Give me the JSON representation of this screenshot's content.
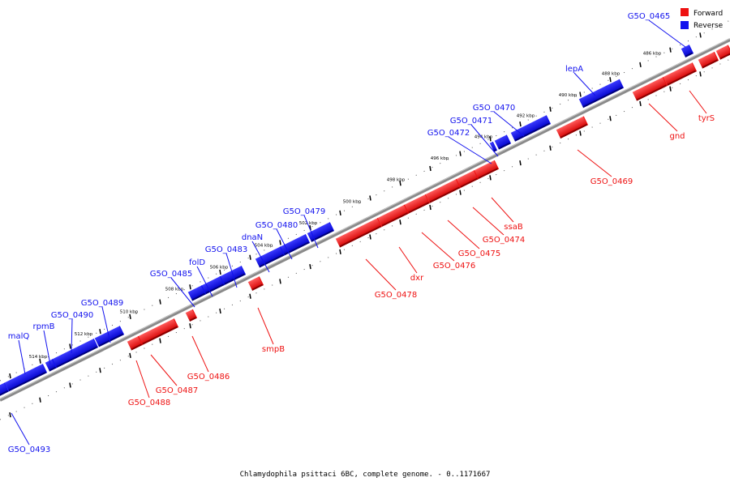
{
  "colors": {
    "forward": "#ee1111",
    "reverse": "#1111ee"
  },
  "legend": [
    {
      "label": "Forward",
      "color": "#ee1111"
    },
    {
      "label": "Reverse",
      "color": "#1111ee"
    }
  ],
  "caption": "Chlamydophila psittaci 6BC, complete genome. - 0..1171667",
  "ticks": [
    "486 kbp",
    "488 kbp",
    "490 kbp",
    "492 kbp",
    "494 kbp",
    "496 kbp",
    "498 kbp",
    "500 kbp",
    "502 kbp",
    "504 kbp",
    "506 kbp",
    "508 kbp",
    "510 kbp",
    "512 kbp",
    "514 kbp"
  ],
  "reverse_genes": [
    "G5O_0465",
    "lepA",
    "G5O_0470",
    "G5O_0471",
    "G5O_0472",
    "G5O_0479",
    "G5O_0480",
    "dnaN",
    "G5O_0483",
    "folD",
    "G5O_0485",
    "G5O_0489",
    "G5O_0490",
    "rpmB",
    "malQ",
    "G5O_0493"
  ],
  "forward_genes": [
    "tyrS",
    "gnd",
    "G5O_0469",
    "ssaB",
    "G5O_0474",
    "G5O_0475",
    "G5O_0476",
    "dxr",
    "G5O_0478",
    "smpB",
    "G5O_0486",
    "G5O_0487",
    "G5O_0488"
  ]
}
